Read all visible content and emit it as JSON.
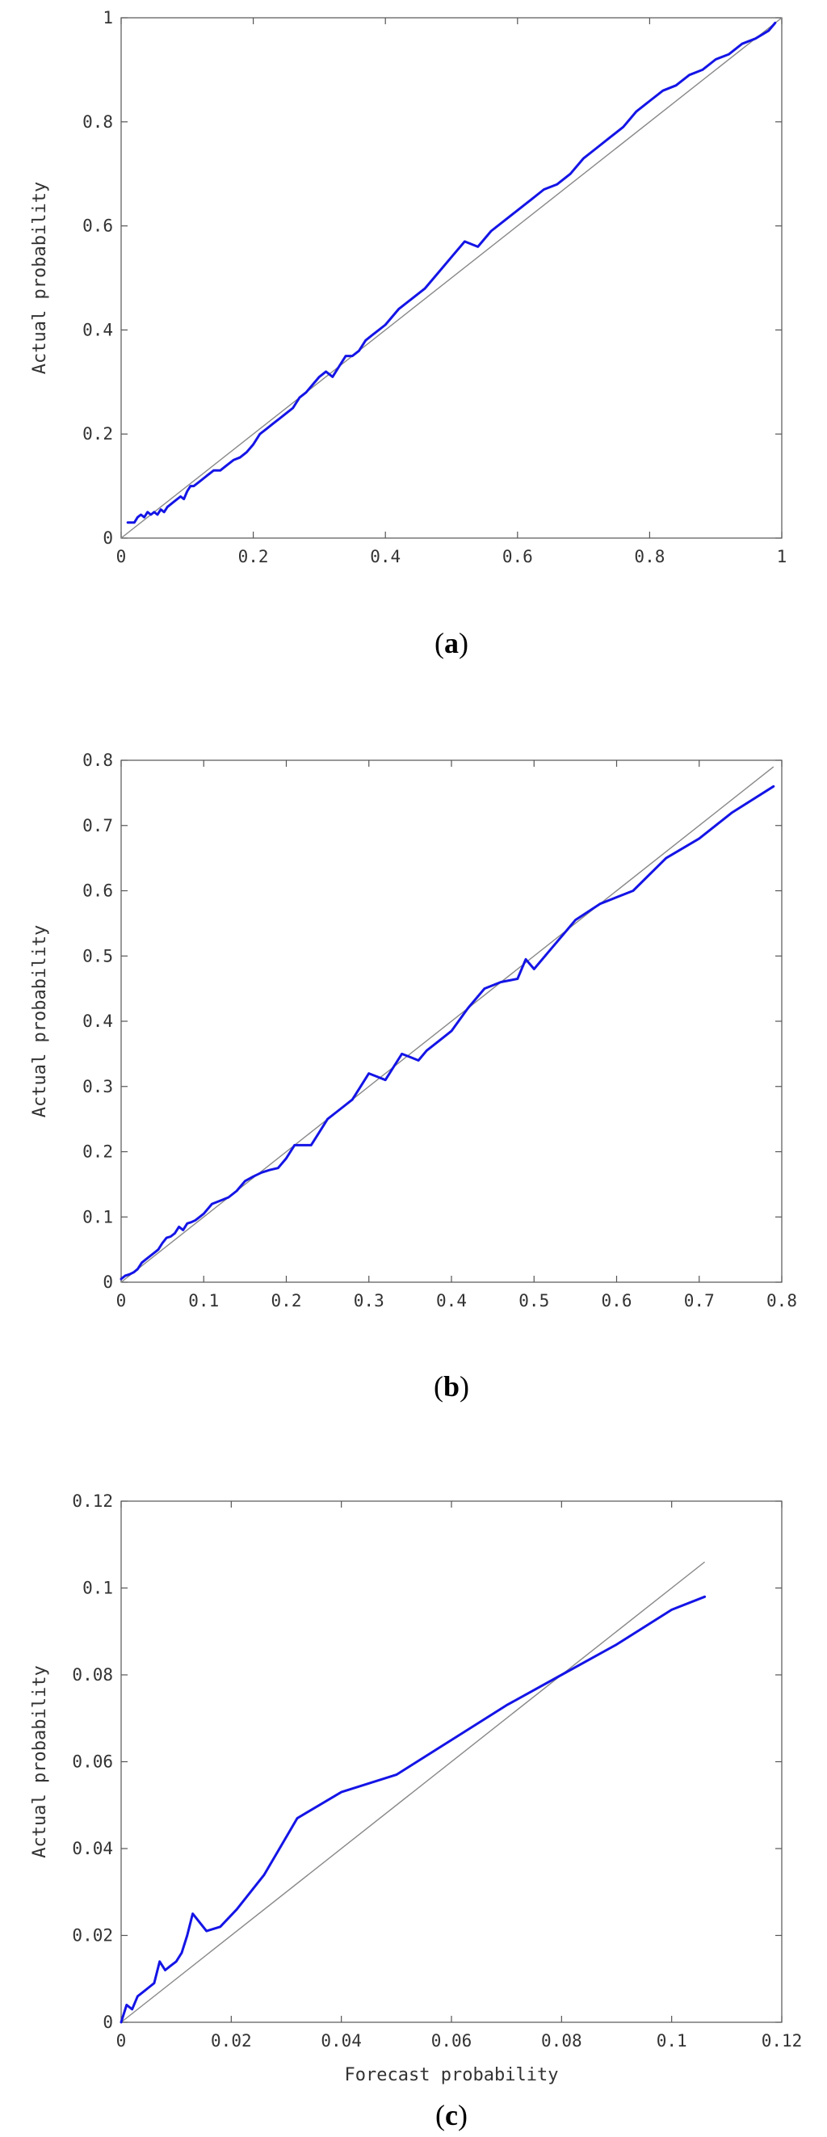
{
  "colors": {
    "series": "#1414e6",
    "reference_line": "#888888",
    "frame": "#555555"
  },
  "chart_data": [
    {
      "type": "line",
      "panel_label": "a",
      "xlabel": "",
      "ylabel": "Actual probability",
      "xlim": [
        0,
        1
      ],
      "ylim": [
        0,
        1
      ],
      "xticks": [
        0,
        0.2,
        0.4,
        0.6,
        0.8,
        1
      ],
      "yticks": [
        0,
        0.2,
        0.4,
        0.6,
        0.8,
        1
      ],
      "xtick_labels": [
        "0",
        "0.2",
        "0.4",
        "0.6",
        "0.8",
        "1"
      ],
      "ytick_labels": [
        "0",
        "0.2",
        "0.4",
        "0.6",
        "0.8",
        "1"
      ],
      "reference_line": {
        "from": [
          0,
          0
        ],
        "to": [
          1,
          1
        ]
      },
      "series": [
        {
          "x": [
            0.01,
            0.02,
            0.025,
            0.03,
            0.035,
            0.04,
            0.045,
            0.05,
            0.055,
            0.06,
            0.065,
            0.07,
            0.08,
            0.09,
            0.095,
            0.1,
            0.105,
            0.11,
            0.12,
            0.13,
            0.14,
            0.15,
            0.16,
            0.17,
            0.18,
            0.19,
            0.2,
            0.21,
            0.22,
            0.23,
            0.24,
            0.25,
            0.26,
            0.27,
            0.28,
            0.29,
            0.3,
            0.31,
            0.32,
            0.33,
            0.34,
            0.35,
            0.36,
            0.37,
            0.38,
            0.39,
            0.4,
            0.42,
            0.44,
            0.46,
            0.48,
            0.5,
            0.52,
            0.54,
            0.56,
            0.58,
            0.6,
            0.62,
            0.64,
            0.66,
            0.68,
            0.7,
            0.72,
            0.74,
            0.76,
            0.78,
            0.8,
            0.82,
            0.84,
            0.86,
            0.88,
            0.9,
            0.92,
            0.94,
            0.96,
            0.98,
            0.99
          ],
          "y": [
            0.03,
            0.03,
            0.04,
            0.045,
            0.04,
            0.05,
            0.045,
            0.05,
            0.045,
            0.055,
            0.05,
            0.06,
            0.07,
            0.08,
            0.075,
            0.09,
            0.1,
            0.1,
            0.11,
            0.12,
            0.13,
            0.13,
            0.14,
            0.15,
            0.155,
            0.165,
            0.18,
            0.2,
            0.21,
            0.22,
            0.23,
            0.24,
            0.25,
            0.27,
            0.28,
            0.295,
            0.31,
            0.32,
            0.31,
            0.33,
            0.35,
            0.35,
            0.36,
            0.38,
            0.39,
            0.4,
            0.41,
            0.44,
            0.46,
            0.48,
            0.51,
            0.54,
            0.57,
            0.56,
            0.59,
            0.61,
            0.63,
            0.65,
            0.67,
            0.68,
            0.7,
            0.73,
            0.75,
            0.77,
            0.79,
            0.82,
            0.84,
            0.86,
            0.87,
            0.89,
            0.9,
            0.92,
            0.93,
            0.95,
            0.96,
            0.975,
            0.99
          ]
        }
      ]
    },
    {
      "type": "line",
      "panel_label": "b",
      "xlabel": "",
      "ylabel": "Actual probability",
      "xlim": [
        0,
        0.8
      ],
      "ylim": [
        0,
        0.8
      ],
      "xticks": [
        0,
        0.1,
        0.2,
        0.3,
        0.4,
        0.5,
        0.6,
        0.7,
        0.8
      ],
      "yticks": [
        0,
        0.1,
        0.2,
        0.3,
        0.4,
        0.5,
        0.6,
        0.7,
        0.8
      ],
      "xtick_labels": [
        "0",
        "0.1",
        "0.2",
        "0.3",
        "0.4",
        "0.5",
        "0.6",
        "0.7",
        "0.8"
      ],
      "ytick_labels": [
        "0",
        "0.1",
        "0.2",
        "0.3",
        "0.4",
        "0.5",
        "0.6",
        "0.7",
        "0.8"
      ],
      "reference_line": {
        "from": [
          0,
          0
        ],
        "to": [
          0.79,
          0.79
        ]
      },
      "series": [
        {
          "x": [
            0.0,
            0.005,
            0.01,
            0.015,
            0.02,
            0.025,
            0.03,
            0.035,
            0.04,
            0.045,
            0.05,
            0.055,
            0.06,
            0.065,
            0.07,
            0.075,
            0.08,
            0.085,
            0.09,
            0.095,
            0.1,
            0.11,
            0.12,
            0.13,
            0.14,
            0.15,
            0.16,
            0.17,
            0.18,
            0.19,
            0.2,
            0.21,
            0.22,
            0.23,
            0.24,
            0.25,
            0.26,
            0.27,
            0.28,
            0.29,
            0.3,
            0.31,
            0.32,
            0.33,
            0.34,
            0.35,
            0.36,
            0.37,
            0.38,
            0.39,
            0.4,
            0.42,
            0.44,
            0.46,
            0.48,
            0.49,
            0.5,
            0.52,
            0.54,
            0.55,
            0.58,
            0.62,
            0.66,
            0.7,
            0.74,
            0.79
          ],
          "y": [
            0.005,
            0.01,
            0.012,
            0.015,
            0.02,
            0.03,
            0.035,
            0.04,
            0.045,
            0.05,
            0.06,
            0.068,
            0.07,
            0.075,
            0.085,
            0.08,
            0.09,
            0.092,
            0.095,
            0.1,
            0.105,
            0.12,
            0.125,
            0.13,
            0.14,
            0.155,
            0.162,
            0.168,
            0.172,
            0.175,
            0.19,
            0.21,
            0.21,
            0.21,
            0.23,
            0.25,
            0.26,
            0.27,
            0.28,
            0.3,
            0.32,
            0.315,
            0.31,
            0.33,
            0.35,
            0.345,
            0.34,
            0.355,
            0.365,
            0.375,
            0.385,
            0.42,
            0.45,
            0.46,
            0.465,
            0.495,
            0.48,
            0.51,
            0.54,
            0.555,
            0.58,
            0.6,
            0.65,
            0.68,
            0.72,
            0.76
          ]
        }
      ]
    },
    {
      "type": "line",
      "panel_label": "c",
      "xlabel": "Forecast probability",
      "ylabel": "Actual probability",
      "xlim": [
        0,
        0.12
      ],
      "ylim": [
        0,
        0.12
      ],
      "xticks": [
        0,
        0.02,
        0.04,
        0.06,
        0.08,
        0.1,
        0.12
      ],
      "yticks": [
        0,
        0.02,
        0.04,
        0.06,
        0.08,
        0.1,
        0.12
      ],
      "xtick_labels": [
        "0",
        "0.02",
        "0.04",
        "0.06",
        "0.08",
        "0.1",
        "0.12"
      ],
      "ytick_labels": [
        "0",
        "0.02",
        "0.04",
        "0.06",
        "0.08",
        "0.1",
        "0.12"
      ],
      "reference_line": {
        "from": [
          0,
          0
        ],
        "to": [
          0.106,
          0.106
        ]
      },
      "series": [
        {
          "x": [
            0.0,
            0.001,
            0.002,
            0.003,
            0.004,
            0.005,
            0.006,
            0.007,
            0.008,
            0.009,
            0.01,
            0.011,
            0.012,
            0.013,
            0.0155,
            0.018,
            0.021,
            0.026,
            0.032,
            0.04,
            0.05,
            0.06,
            0.07,
            0.08,
            0.09,
            0.1,
            0.106
          ],
          "y": [
            0.0,
            0.004,
            0.003,
            0.006,
            0.007,
            0.008,
            0.009,
            0.014,
            0.012,
            0.013,
            0.014,
            0.016,
            0.02,
            0.025,
            0.021,
            0.022,
            0.026,
            0.034,
            0.047,
            0.053,
            0.057,
            0.065,
            0.073,
            0.08,
            0.087,
            0.095,
            0.098
          ]
        }
      ]
    }
  ]
}
